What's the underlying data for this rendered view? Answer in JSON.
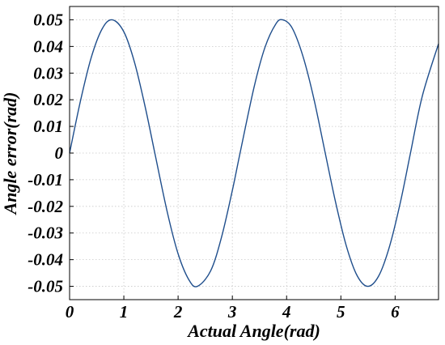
{
  "chart_data": {
    "type": "line",
    "xlabel": "Actual Angle(rad)",
    "ylabel": "Angle error(rad)",
    "xlim": [
      0,
      6.8
    ],
    "ylim": [
      -0.055,
      0.055
    ],
    "x_ticks": [
      0,
      1,
      2,
      3,
      4,
      5,
      6
    ],
    "x_tick_labels": [
      "0",
      "1",
      "2",
      "3",
      "4",
      "5",
      "6"
    ],
    "y_ticks": [
      -0.05,
      -0.04,
      -0.03,
      -0.02,
      -0.01,
      0,
      0.01,
      0.02,
      0.03,
      0.04,
      0.05
    ],
    "y_tick_labels": [
      "-0.05",
      "-0.04",
      "-0.03",
      "-0.02",
      "-0.01",
      "0",
      "0.01",
      "0.02",
      "0.03",
      "0.04",
      "0.05"
    ],
    "grid": true,
    "series": [
      {
        "color": "#1f4e8c",
        "x": [
          0,
          0.2,
          0.4,
          0.6,
          0.785,
          1.0,
          1.2,
          1.4,
          1.571,
          1.8,
          2.0,
          2.2,
          2.356,
          2.6,
          2.8,
          3.0,
          3.142,
          3.4,
          3.6,
          3.8,
          3.927,
          4.1,
          4.3,
          4.5,
          4.712,
          4.9,
          5.1,
          5.3,
          5.498,
          5.7,
          5.9,
          6.1,
          6.283,
          6.5,
          6.8
        ],
        "y": [
          0,
          0.0195,
          0.0359,
          0.0466,
          0.05,
          0.0455,
          0.0338,
          0.0167,
          0,
          -0.0221,
          -0.0378,
          -0.0476,
          -0.05,
          -0.0442,
          -0.0316,
          -0.014,
          0,
          0.0247,
          0.0396,
          0.0484,
          0.05,
          0.047,
          0.0364,
          0.0206,
          0,
          -0.0182,
          -0.0348,
          -0.046,
          -0.05,
          -0.046,
          -0.0348,
          -0.0182,
          0,
          0.0213,
          0.041
        ]
      }
    ]
  }
}
